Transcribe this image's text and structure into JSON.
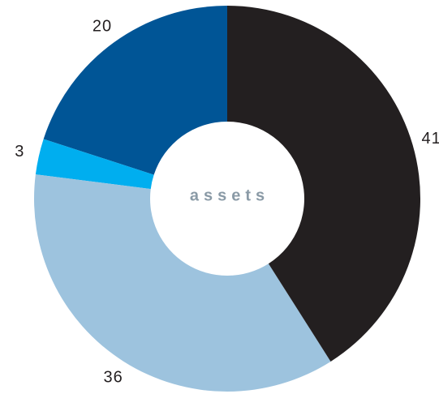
{
  "chart_data": {
    "type": "donut",
    "center_label": "assets",
    "values": [
      41,
      36,
      3,
      20
    ],
    "colors": [
      "#231f20",
      "#9dc3de",
      "#00aeef",
      "#005596"
    ]
  }
}
